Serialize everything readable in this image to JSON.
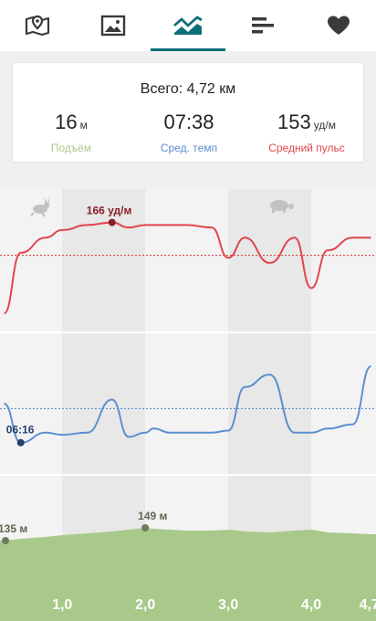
{
  "colors": {
    "accent": "#0e6f7b",
    "elevation": "#a8c98a",
    "pace": "#5b8fcf",
    "pulse": "#e0464d"
  },
  "tabs": [
    {
      "icon": "map-icon",
      "active": false
    },
    {
      "icon": "photo-icon",
      "active": false
    },
    {
      "icon": "chart-icon",
      "active": true
    },
    {
      "icon": "bar-list-icon",
      "active": false
    },
    {
      "icon": "heart-icon",
      "active": false
    }
  ],
  "summary": {
    "total_label": "Всего:",
    "total_value": "4,72 км",
    "stats": [
      {
        "value": "16",
        "unit": "м",
        "label": "Подъём"
      },
      {
        "value": "07:38",
        "unit": "",
        "label": "Сред. темп"
      },
      {
        "value": "153",
        "unit": "уд/м",
        "label": "Средний пульс"
      }
    ]
  },
  "chart_data": {
    "type": "line",
    "x": [
      0.3,
      0.5,
      0.8,
      1.0,
      1.3,
      1.6,
      1.8,
      2.0,
      2.1,
      2.3,
      2.5,
      2.8,
      3.0,
      3.2,
      3.5,
      3.8,
      4.0,
      4.2,
      4.5,
      4.72
    ],
    "xticks": [
      "1,0",
      "2,0",
      "3,0",
      "4,0",
      "4,7"
    ],
    "series": [
      {
        "key": "pulse",
        "values": [
          130,
          154,
          160,
          163,
          165,
          166,
          164,
          165,
          165,
          165,
          165,
          164,
          152,
          160,
          150,
          160,
          140,
          155,
          160,
          160
        ],
        "average": 153,
        "annotation": "166 уд/м"
      },
      {
        "key": "pace",
        "values": [
          "7:50",
          "6:16",
          "6:40",
          "6:35",
          "6:40",
          "8:00",
          "6:30",
          "6:40",
          "6:50",
          "6:40",
          "6:40",
          "6:40",
          "6:45",
          "8:30",
          "9:00",
          "6:40",
          "6:40",
          "6:50",
          "7:00",
          "9:20"
        ],
        "average": "07:38",
        "annotation": "06:16"
      },
      {
        "key": "elevation",
        "values": [
          135,
          137,
          139,
          141,
          143,
          145,
          147,
          149,
          148,
          147,
          146,
          146,
          147,
          145,
          144,
          146,
          147,
          144,
          143,
          142
        ],
        "annotations": [
          "135 м",
          "149 м"
        ]
      }
    ]
  }
}
